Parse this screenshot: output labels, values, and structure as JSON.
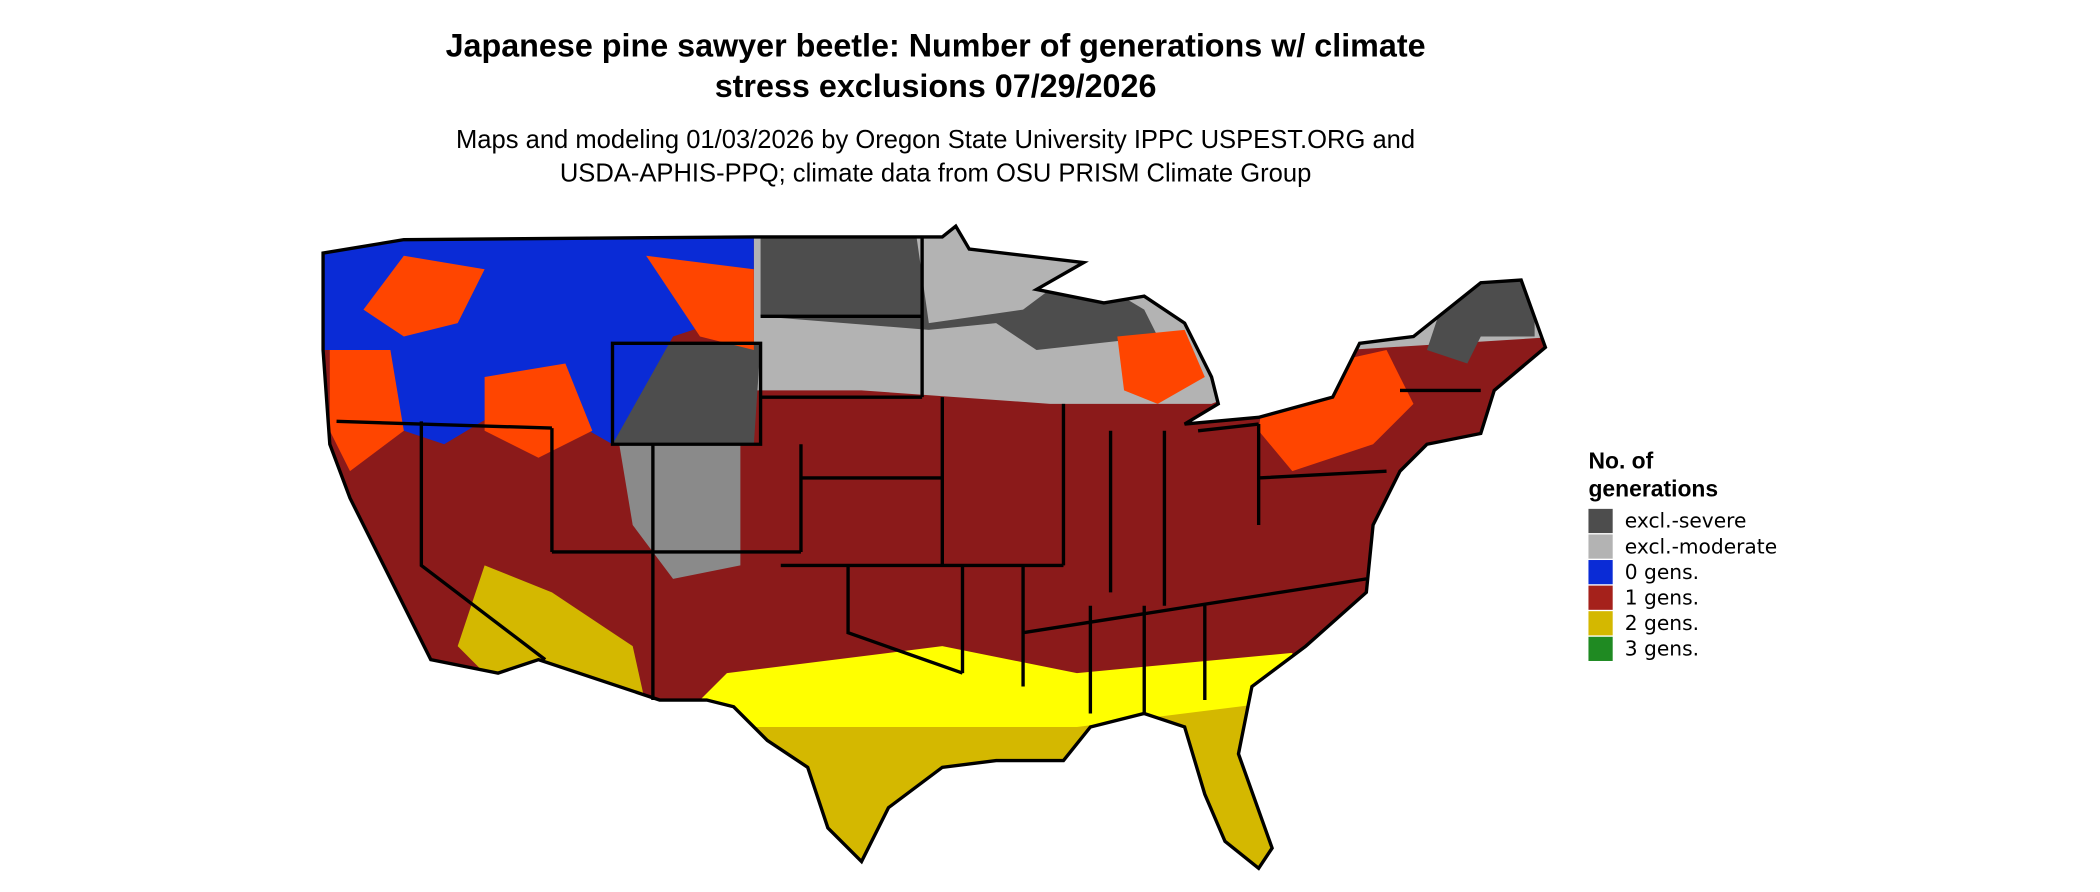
{
  "title": [
    "Japanese pine sawyer beetle: Number of generations w/ climate",
    "stress exclusions 07/29/2026"
  ],
  "subtitle": [
    "Maps and modeling 01/03/2026 by Oregon State University IPPC USPEST.ORG and",
    "USDA-APHIS-PPQ; climate data from OSU PRISM Climate Group"
  ],
  "legend": {
    "title": [
      "No. of",
      "generations"
    ],
    "items": [
      {
        "label": "excl.-severe",
        "color": "#4d4d4d"
      },
      {
        "label": "excl.-moderate",
        "color": "#b3b3b3"
      },
      {
        "label": "0 gens.",
        "color": "#0a2bd6"
      },
      {
        "label": "1 gens.",
        "color": "#a5211b"
      },
      {
        "label": "2 gens.",
        "color": "#d4b800"
      },
      {
        "label": "3 gens.",
        "color": "#1f8a22"
      }
    ]
  }
}
